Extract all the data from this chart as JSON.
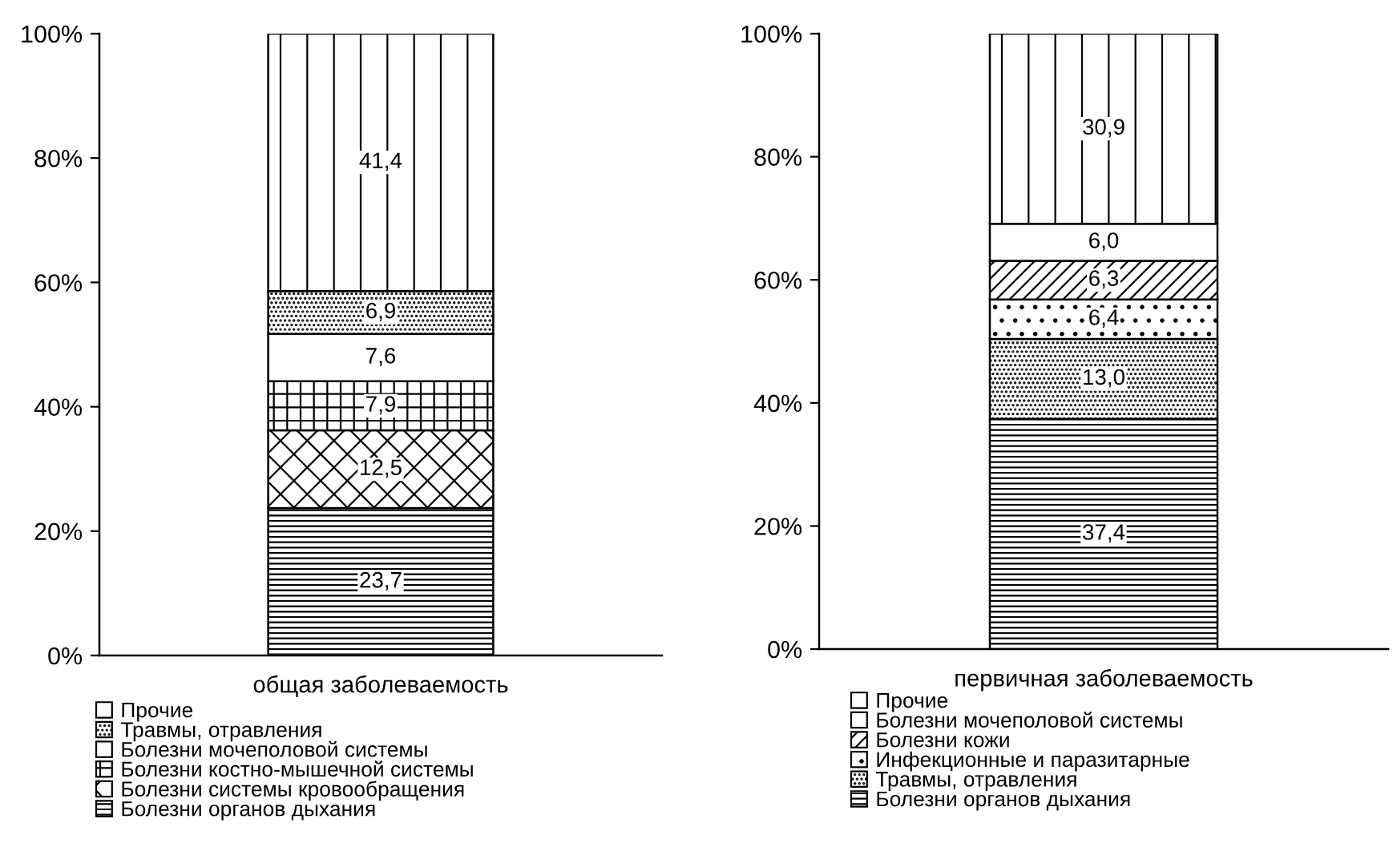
{
  "chart_data": [
    {
      "type": "bar",
      "stacked": true,
      "categories": [
        "общая заболеваемость"
      ],
      "series": [
        {
          "name": "Болезни органов дыхания",
          "color": "#000000",
          "values": [
            23.7
          ],
          "value_labels": [
            "23,7"
          ]
        },
        {
          "name": "Болезни системы кровообращения",
          "color": "#000000",
          "values": [
            12.5
          ],
          "value_labels": [
            "12,5"
          ]
        },
        {
          "name": "Болезни костно-мышечной системы",
          "color": "#000000",
          "values": [
            7.9
          ],
          "value_labels": [
            "7,9"
          ]
        },
        {
          "name": "Болезни мочеполовой системы",
          "color": "#ffffff",
          "values": [
            7.6
          ],
          "value_labels": [
            "7,6"
          ]
        },
        {
          "name": "Травмы, отравления",
          "color": "#000000",
          "values": [
            6.9
          ],
          "value_labels": [
            "6,9"
          ]
        },
        {
          "name": "Прочие",
          "color": "#000000",
          "values": [
            41.4
          ],
          "value_labels": [
            "41,4"
          ]
        }
      ],
      "ylim": [
        0,
        100
      ],
      "yticks": [
        {
          "value": 0,
          "label": "0%"
        },
        {
          "value": 20,
          "label": "20%"
        },
        {
          "value": 40,
          "label": "40%"
        },
        {
          "value": 60,
          "label": "60%"
        },
        {
          "value": 80,
          "label": "80%"
        },
        {
          "value": 100,
          "label": "100%"
        }
      ],
      "legend": "bottom"
    },
    {
      "type": "bar",
      "stacked": true,
      "categories": [
        "первичная заболеваемость"
      ],
      "series": [
        {
          "name": "Болезни органов дыхания",
          "color": "#000000",
          "values": [
            37.4
          ],
          "value_labels": [
            "37,4"
          ]
        },
        {
          "name": "Травмы, отравления",
          "color": "#000000",
          "values": [
            13.0
          ],
          "value_labels": [
            "13,0"
          ]
        },
        {
          "name": "Инфекционные и паразитарные",
          "color": "#000000",
          "values": [
            6.4
          ],
          "value_labels": [
            "6,4"
          ]
        },
        {
          "name": "Болезни кожи",
          "color": "#000000",
          "values": [
            6.3
          ],
          "value_labels": [
            "6,3"
          ]
        },
        {
          "name": "Болезни мочеполовой системы",
          "color": "#ffffff",
          "values": [
            6.0
          ],
          "value_labels": [
            "6,0"
          ]
        },
        {
          "name": "Прочие",
          "color": "#000000",
          "values": [
            30.9
          ],
          "value_labels": [
            "30,9"
          ]
        }
      ],
      "ylim": [
        0,
        100
      ],
      "yticks": [
        {
          "value": 0,
          "label": "0%"
        },
        {
          "value": 20,
          "label": "20%"
        },
        {
          "value": 40,
          "label": "40%"
        },
        {
          "value": 60,
          "label": "60%"
        },
        {
          "value": 80,
          "label": "80%"
        },
        {
          "value": 100,
          "label": "100%"
        }
      ],
      "legend": "bottom"
    }
  ]
}
